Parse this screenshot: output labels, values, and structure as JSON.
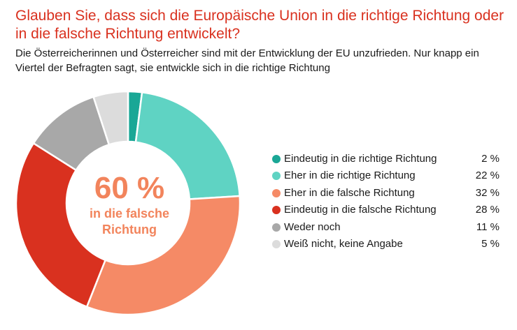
{
  "title": "Glauben Sie, dass sich die Europäische Union in die richtige Richtung oder in die falsche Richtung entwickelt?",
  "subtitle": "Die Österreicherinnen und Österreicher sind mit der Entwicklung der EU unzufrieden. Nur knapp ein Viertel der Befragten sagt, sie entwickle sich in die richtige Richtung",
  "center": {
    "value": "60 %",
    "text": "in die falsche Richtung"
  },
  "chart_data": {
    "type": "pie",
    "title": "Glauben Sie, dass sich die Europäische Union in die richtige Richtung oder in die falsche Richtung entwickelt?",
    "categories": [
      "Eindeutig in die richtige Richtung",
      "Eher in die richtige Richtung",
      "Eher in die falsche Richtung",
      "Eindeutig in die falsche Richtung",
      "Weder noch",
      "Weiß nicht, keine Angabe"
    ],
    "values": [
      2,
      22,
      32,
      28,
      11,
      5
    ],
    "value_labels": [
      "2 %",
      "22 %",
      "32 %",
      "28 %",
      "11 %",
      "5 %"
    ],
    "colors": [
      "#1aa796",
      "#5fd3c3",
      "#f58a66",
      "#d9311f",
      "#a8a8a8",
      "#dcdcdc"
    ],
    "style": "donut",
    "legend_position": "right"
  }
}
